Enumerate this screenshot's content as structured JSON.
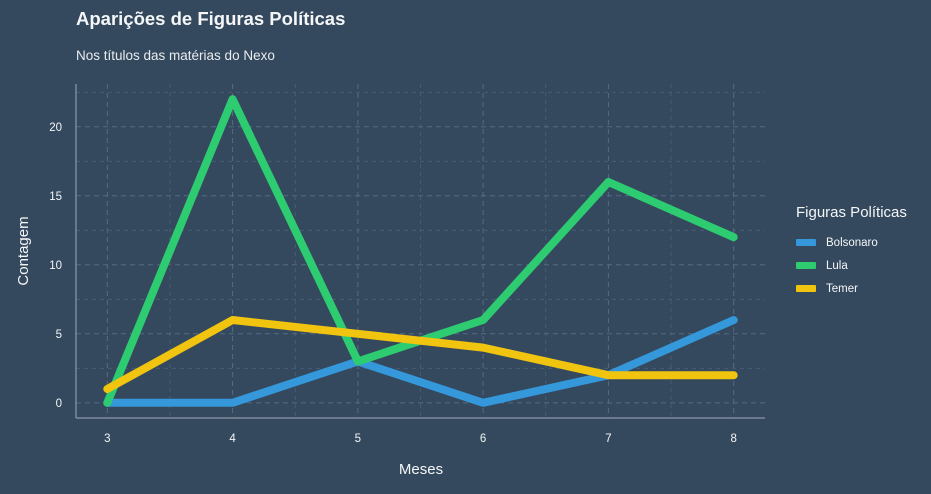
{
  "chart_data": {
    "type": "line",
    "title": "Aparições de Figuras Políticas",
    "subtitle": "Nos títulos das matérias do Nexo",
    "xlabel": "Meses",
    "ylabel": "Contagem",
    "x": [
      3,
      4,
      5,
      6,
      7,
      8
    ],
    "xlim": [
      2.75,
      8.25
    ],
    "ylim": [
      -1.1,
      23.1
    ],
    "xticks": [
      3,
      4,
      5,
      6,
      7,
      8
    ],
    "yticks": [
      0,
      5,
      10,
      15,
      20
    ],
    "grid": true,
    "legend": {
      "title": "Figuras Políticas",
      "position": "right"
    },
    "series": [
      {
        "name": "Bolsonaro",
        "color": "#3498db",
        "values": [
          0,
          0,
          3,
          0,
          2,
          6
        ]
      },
      {
        "name": "Lula",
        "color": "#2ecc71",
        "values": [
          0,
          22,
          3,
          6,
          16,
          12
        ]
      },
      {
        "name": "Temer",
        "color": "#f1c40f",
        "values": [
          1,
          6,
          5,
          4,
          2,
          2
        ]
      }
    ]
  }
}
